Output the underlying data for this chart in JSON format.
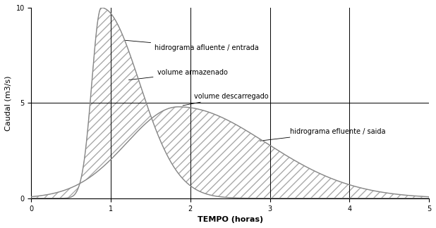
{
  "xlabel": "TEMPO (horas)",
  "ylabel": "Caudal (m3/s)",
  "xlim": [
    0,
    5
  ],
  "ylim": [
    0,
    10
  ],
  "xticks": [
    0,
    1,
    2,
    3,
    4,
    5
  ],
  "yticks": [
    0,
    5,
    10
  ],
  "hline_y": 5,
  "vlines": [
    1,
    2,
    3,
    4
  ],
  "curve_color": "#888888",
  "hatch_color": "#aaaaaa",
  "background_color": "#ffffff",
  "label_afluente": "hidrograma afluente / entrada",
  "label_armazenado": "volume armazenado",
  "label_descarregado": "volume descarregado",
  "label_efluente": "hidrograma efluente / saida",
  "figsize": [
    6.18,
    3.24
  ],
  "dpi": 100
}
